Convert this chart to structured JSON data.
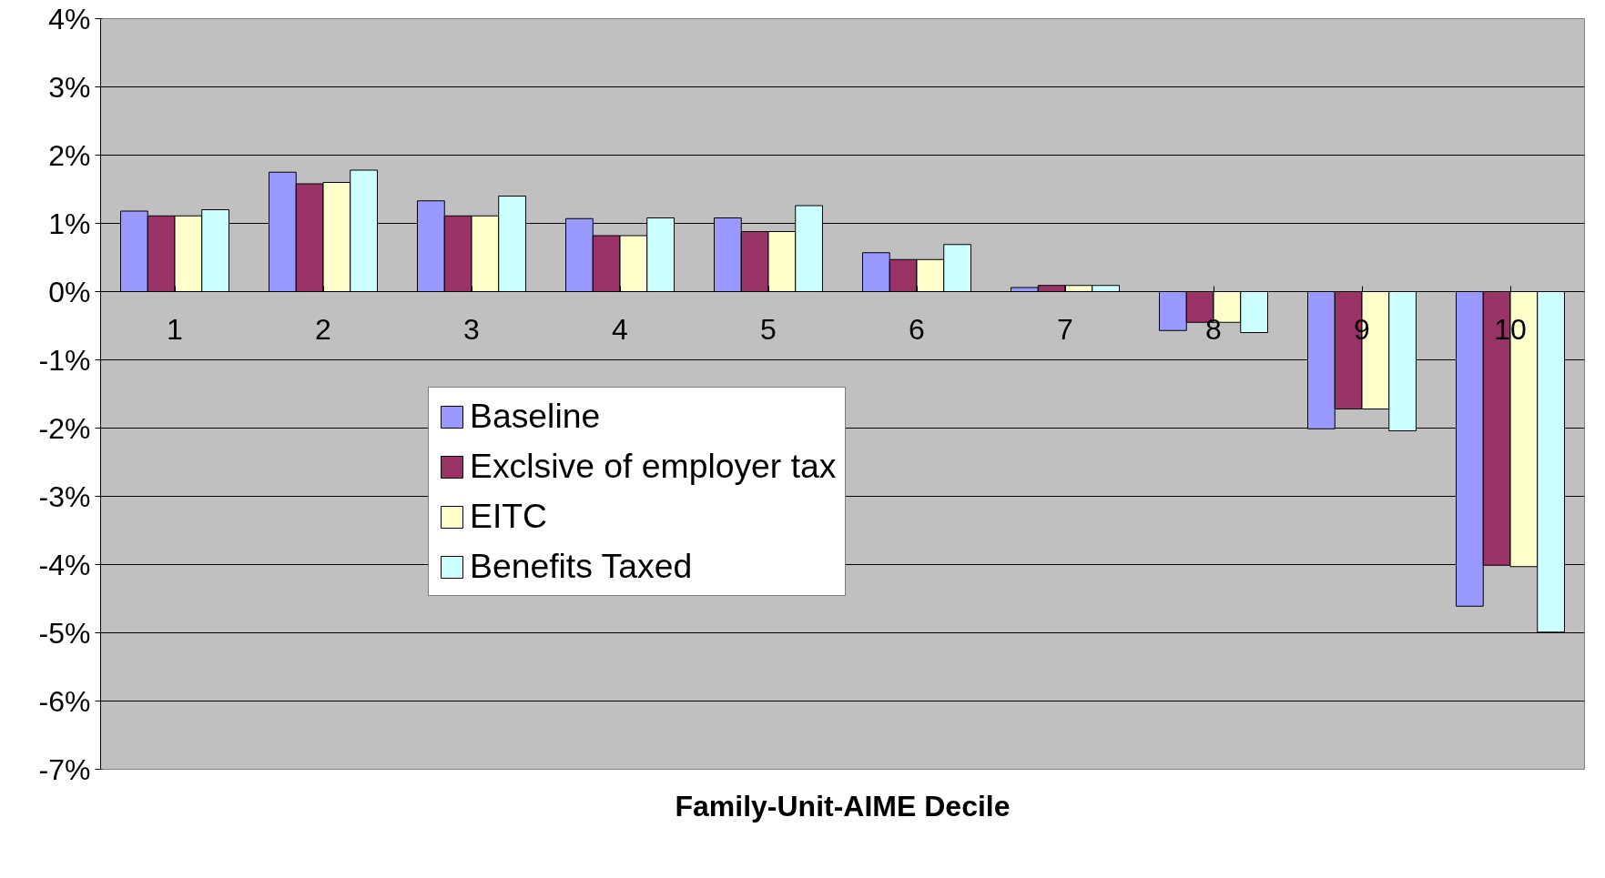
{
  "chart_data": {
    "type": "bar",
    "xlabel": "Family-Unit-AIME Decile",
    "categories": [
      "1",
      "2",
      "3",
      "4",
      "5",
      "6",
      "7",
      "8",
      "9",
      "10"
    ],
    "series": [
      {
        "name": "Baseline",
        "color": "#9999ff",
        "values": [
          1.18,
          1.75,
          1.33,
          1.07,
          1.08,
          0.57,
          0.06,
          -0.57,
          -2.01,
          -4.61
        ]
      },
      {
        "name": "Exclsive of employer tax",
        "color": "#993366",
        "values": [
          1.11,
          1.58,
          1.11,
          0.82,
          0.88,
          0.47,
          0.09,
          -0.45,
          -1.72,
          -4.01
        ]
      },
      {
        "name": "EITC",
        "color": "#ffffcc",
        "values": [
          1.11,
          1.6,
          1.11,
          0.82,
          0.88,
          0.47,
          0.09,
          -0.45,
          -1.72,
          -4.03
        ]
      },
      {
        "name": "Benefits Taxed",
        "color": "#ccffff",
        "values": [
          1.2,
          1.78,
          1.4,
          1.08,
          1.26,
          0.69,
          0.09,
          -0.6,
          -2.04,
          -4.99
        ]
      }
    ],
    "ylim": [
      -7,
      4
    ],
    "yticks": [
      {
        "value": -7,
        "label": "-7%"
      },
      {
        "value": -6,
        "label": "-6%"
      },
      {
        "value": -5,
        "label": "-5%"
      },
      {
        "value": -4,
        "label": "-4%"
      },
      {
        "value": -3,
        "label": "-3%"
      },
      {
        "value": -2,
        "label": "-2%"
      },
      {
        "value": -1,
        "label": "-1%"
      },
      {
        "value": 0,
        "label": "0%"
      },
      {
        "value": 1,
        "label": "1%"
      },
      {
        "value": 2,
        "label": "2%"
      },
      {
        "value": 3,
        "label": "3%"
      },
      {
        "value": 4,
        "label": "4%"
      }
    ],
    "grid": "y",
    "legend": "center"
  }
}
